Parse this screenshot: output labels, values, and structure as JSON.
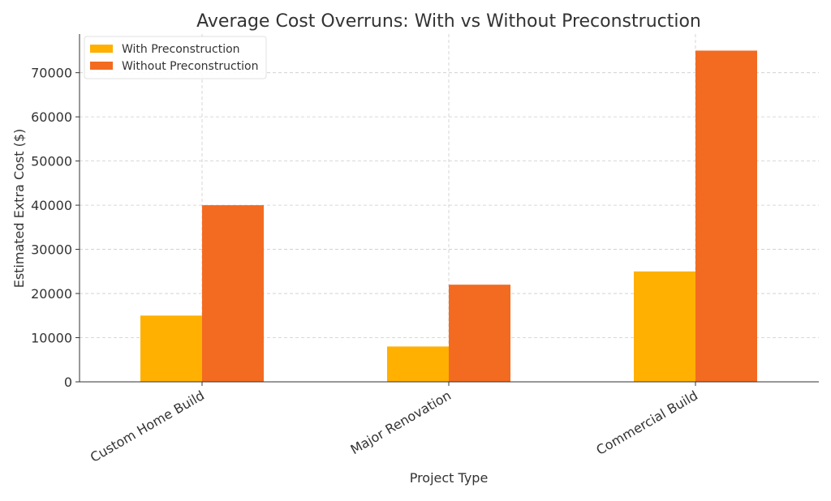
{
  "chart_data": {
    "type": "bar",
    "title": "Average Cost Overruns: With vs Without Preconstruction",
    "xlabel": "Project Type",
    "ylabel": "Estimated Extra Cost ($)",
    "categories": [
      "Custom Home Build",
      "Major Renovation",
      "Commercial Build"
    ],
    "series": [
      {
        "name": "With Preconstruction",
        "values": [
          15000,
          8000,
          25000
        ],
        "color": "#FFB000"
      },
      {
        "name": "Without Preconstruction",
        "values": [
          40000,
          22000,
          75000
        ],
        "color": "#F26B21"
      }
    ],
    "ylim": [
      0,
      78750
    ],
    "yticks": [
      0,
      10000,
      20000,
      30000,
      40000,
      50000,
      60000,
      70000
    ],
    "grid": true,
    "legend": "top-left"
  }
}
